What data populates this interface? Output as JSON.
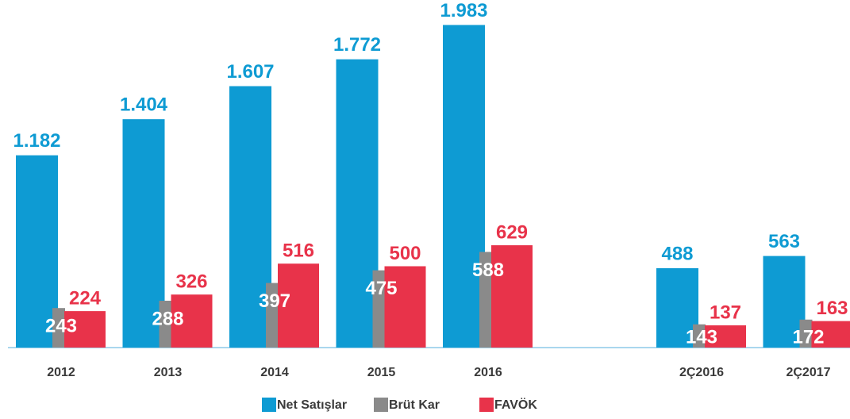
{
  "chart_data": {
    "type": "bar",
    "categories": [
      "2012",
      "2013",
      "2014",
      "2015",
      "2016",
      null,
      "2Ç2016",
      "2Ç2017"
    ],
    "series": [
      {
        "name": "Net Satışlar",
        "color": "#0e9bd3",
        "values": [
          1182,
          1404,
          1607,
          1772,
          1983,
          null,
          488,
          563
        ],
        "value_labels": [
          "1.182",
          "1.404",
          "1.607",
          "1.772",
          "1.983",
          null,
          "488",
          "563"
        ]
      },
      {
        "name": "Brüt Kar",
        "color": "#8a8a8a",
        "values": [
          243,
          288,
          397,
          475,
          588,
          null,
          143,
          172
        ]
      },
      {
        "name": "FAVÖK",
        "color": "#e8334a",
        "values": [
          224,
          326,
          516,
          500,
          629,
          null,
          137,
          163
        ]
      }
    ],
    "ylim": [
      0,
      2000
    ],
    "legend": "bottom"
  }
}
